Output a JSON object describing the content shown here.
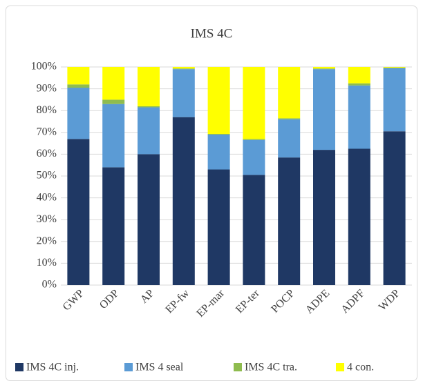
{
  "chart_data": {
    "type": "stacked-bar",
    "title": "IMS 4C",
    "categories": [
      "GWP",
      "ODP",
      "AP",
      "EP-fw",
      "EP-mar",
      "EP-ter",
      "POCP",
      "ADPE",
      "ADPF",
      "WDP"
    ],
    "series": [
      {
        "name": "IMS 4C inj.",
        "color": "#1f3864",
        "values": [
          67,
          54,
          60,
          77,
          53,
          50.5,
          58.5,
          62,
          62.5,
          70.5
        ]
      },
      {
        "name": "IMS 4 seal",
        "color": "#5b9bd5",
        "values": [
          23.5,
          29,
          21.5,
          22,
          16,
          16,
          17.5,
          37,
          29,
          29
        ]
      },
      {
        "name": "IMS 4C tra.",
        "color": "#8fbc4f",
        "values": [
          1.5,
          2,
          0.5,
          0.3,
          0.3,
          0.5,
          0.5,
          0.3,
          1,
          0.2
        ]
      },
      {
        "name": "4 con.",
        "color": "#ffff00",
        "values": [
          8,
          15,
          18,
          0.7,
          30.7,
          33,
          23.5,
          0.7,
          7.5,
          0.3
        ]
      }
    ],
    "ylim": [
      0,
      100
    ],
    "yticks": [
      {
        "value": 0,
        "label": "0%"
      },
      {
        "value": 10,
        "label": "10%"
      },
      {
        "value": 20,
        "label": "20%"
      },
      {
        "value": 30,
        "label": "30%"
      },
      {
        "value": 40,
        "label": "40%"
      },
      {
        "value": 50,
        "label": "50%"
      },
      {
        "value": 60,
        "label": "60%"
      },
      {
        "value": 70,
        "label": "70%"
      },
      {
        "value": 80,
        "label": "80%"
      },
      {
        "value": 90,
        "label": "90%"
      },
      {
        "value": 100,
        "label": "100%"
      }
    ],
    "grid": true,
    "legend": "bottom"
  }
}
